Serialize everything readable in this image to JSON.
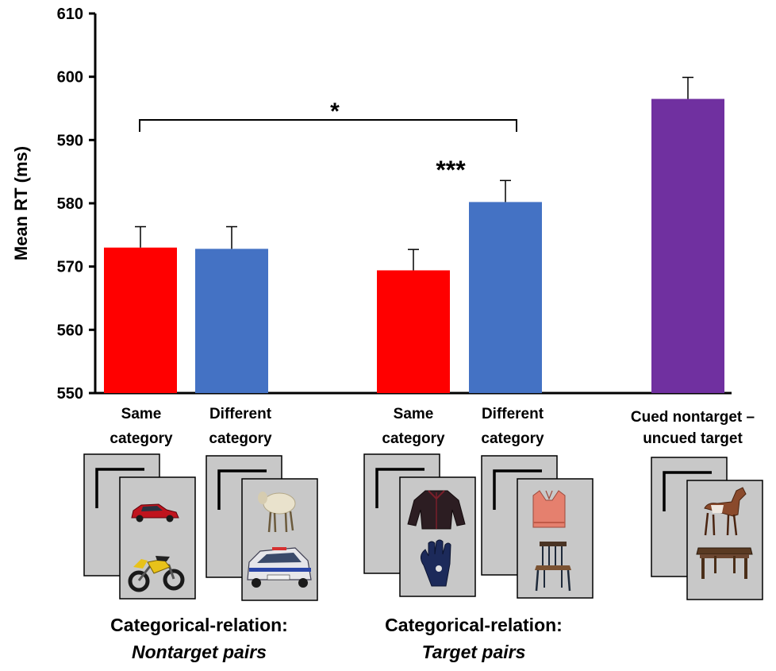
{
  "chart_data": {
    "type": "bar",
    "ylabel": "Mean RT (ms)",
    "ylim": [
      550,
      610
    ],
    "yticks": [
      "550",
      "560",
      "570",
      "580",
      "590",
      "600",
      "610"
    ],
    "bars": [
      {
        "label_line1": "Same",
        "label_line2": "category",
        "value": 573,
        "error": 3.3,
        "color": "#ff0000"
      },
      {
        "label_line1": "Different",
        "label_line2": "category",
        "value": 572.8,
        "error": 3.5,
        "color": "#4472c4"
      },
      {
        "label_line1": "Same",
        "label_line2": "category",
        "value": 569.4,
        "error": 3.3,
        "color": "#ff0000"
      },
      {
        "label_line1": "Different",
        "label_line2": "category",
        "value": 580.2,
        "error": 3.4,
        "color": "#4472c4"
      },
      {
        "label_line1": "Cued nontarget –",
        "label_line2": "uncued target",
        "value": 596.5,
        "error": 3.4,
        "color": "#7030a0"
      }
    ],
    "groups": [
      {
        "line1": "Categorical-relation:",
        "line2": "Nontarget pairs"
      },
      {
        "line1": "Categorical-relation:",
        "line2": "Target pairs"
      }
    ],
    "significance": [
      {
        "label": "*",
        "type": "bracket",
        "between": [
          0,
          3
        ]
      },
      {
        "label": "***",
        "type": "above",
        "bar": 3
      }
    ]
  },
  "images": [
    {
      "top": "car-image",
      "bottom": "motorcycle-image"
    },
    {
      "top": "sheep-image",
      "bottom": "van-image"
    },
    {
      "top": "jacket-image",
      "bottom": "glove-image"
    },
    {
      "top": "sweater-vest-image",
      "bottom": "chair-image"
    },
    {
      "top": "horse-image",
      "bottom": "table-image"
    }
  ]
}
